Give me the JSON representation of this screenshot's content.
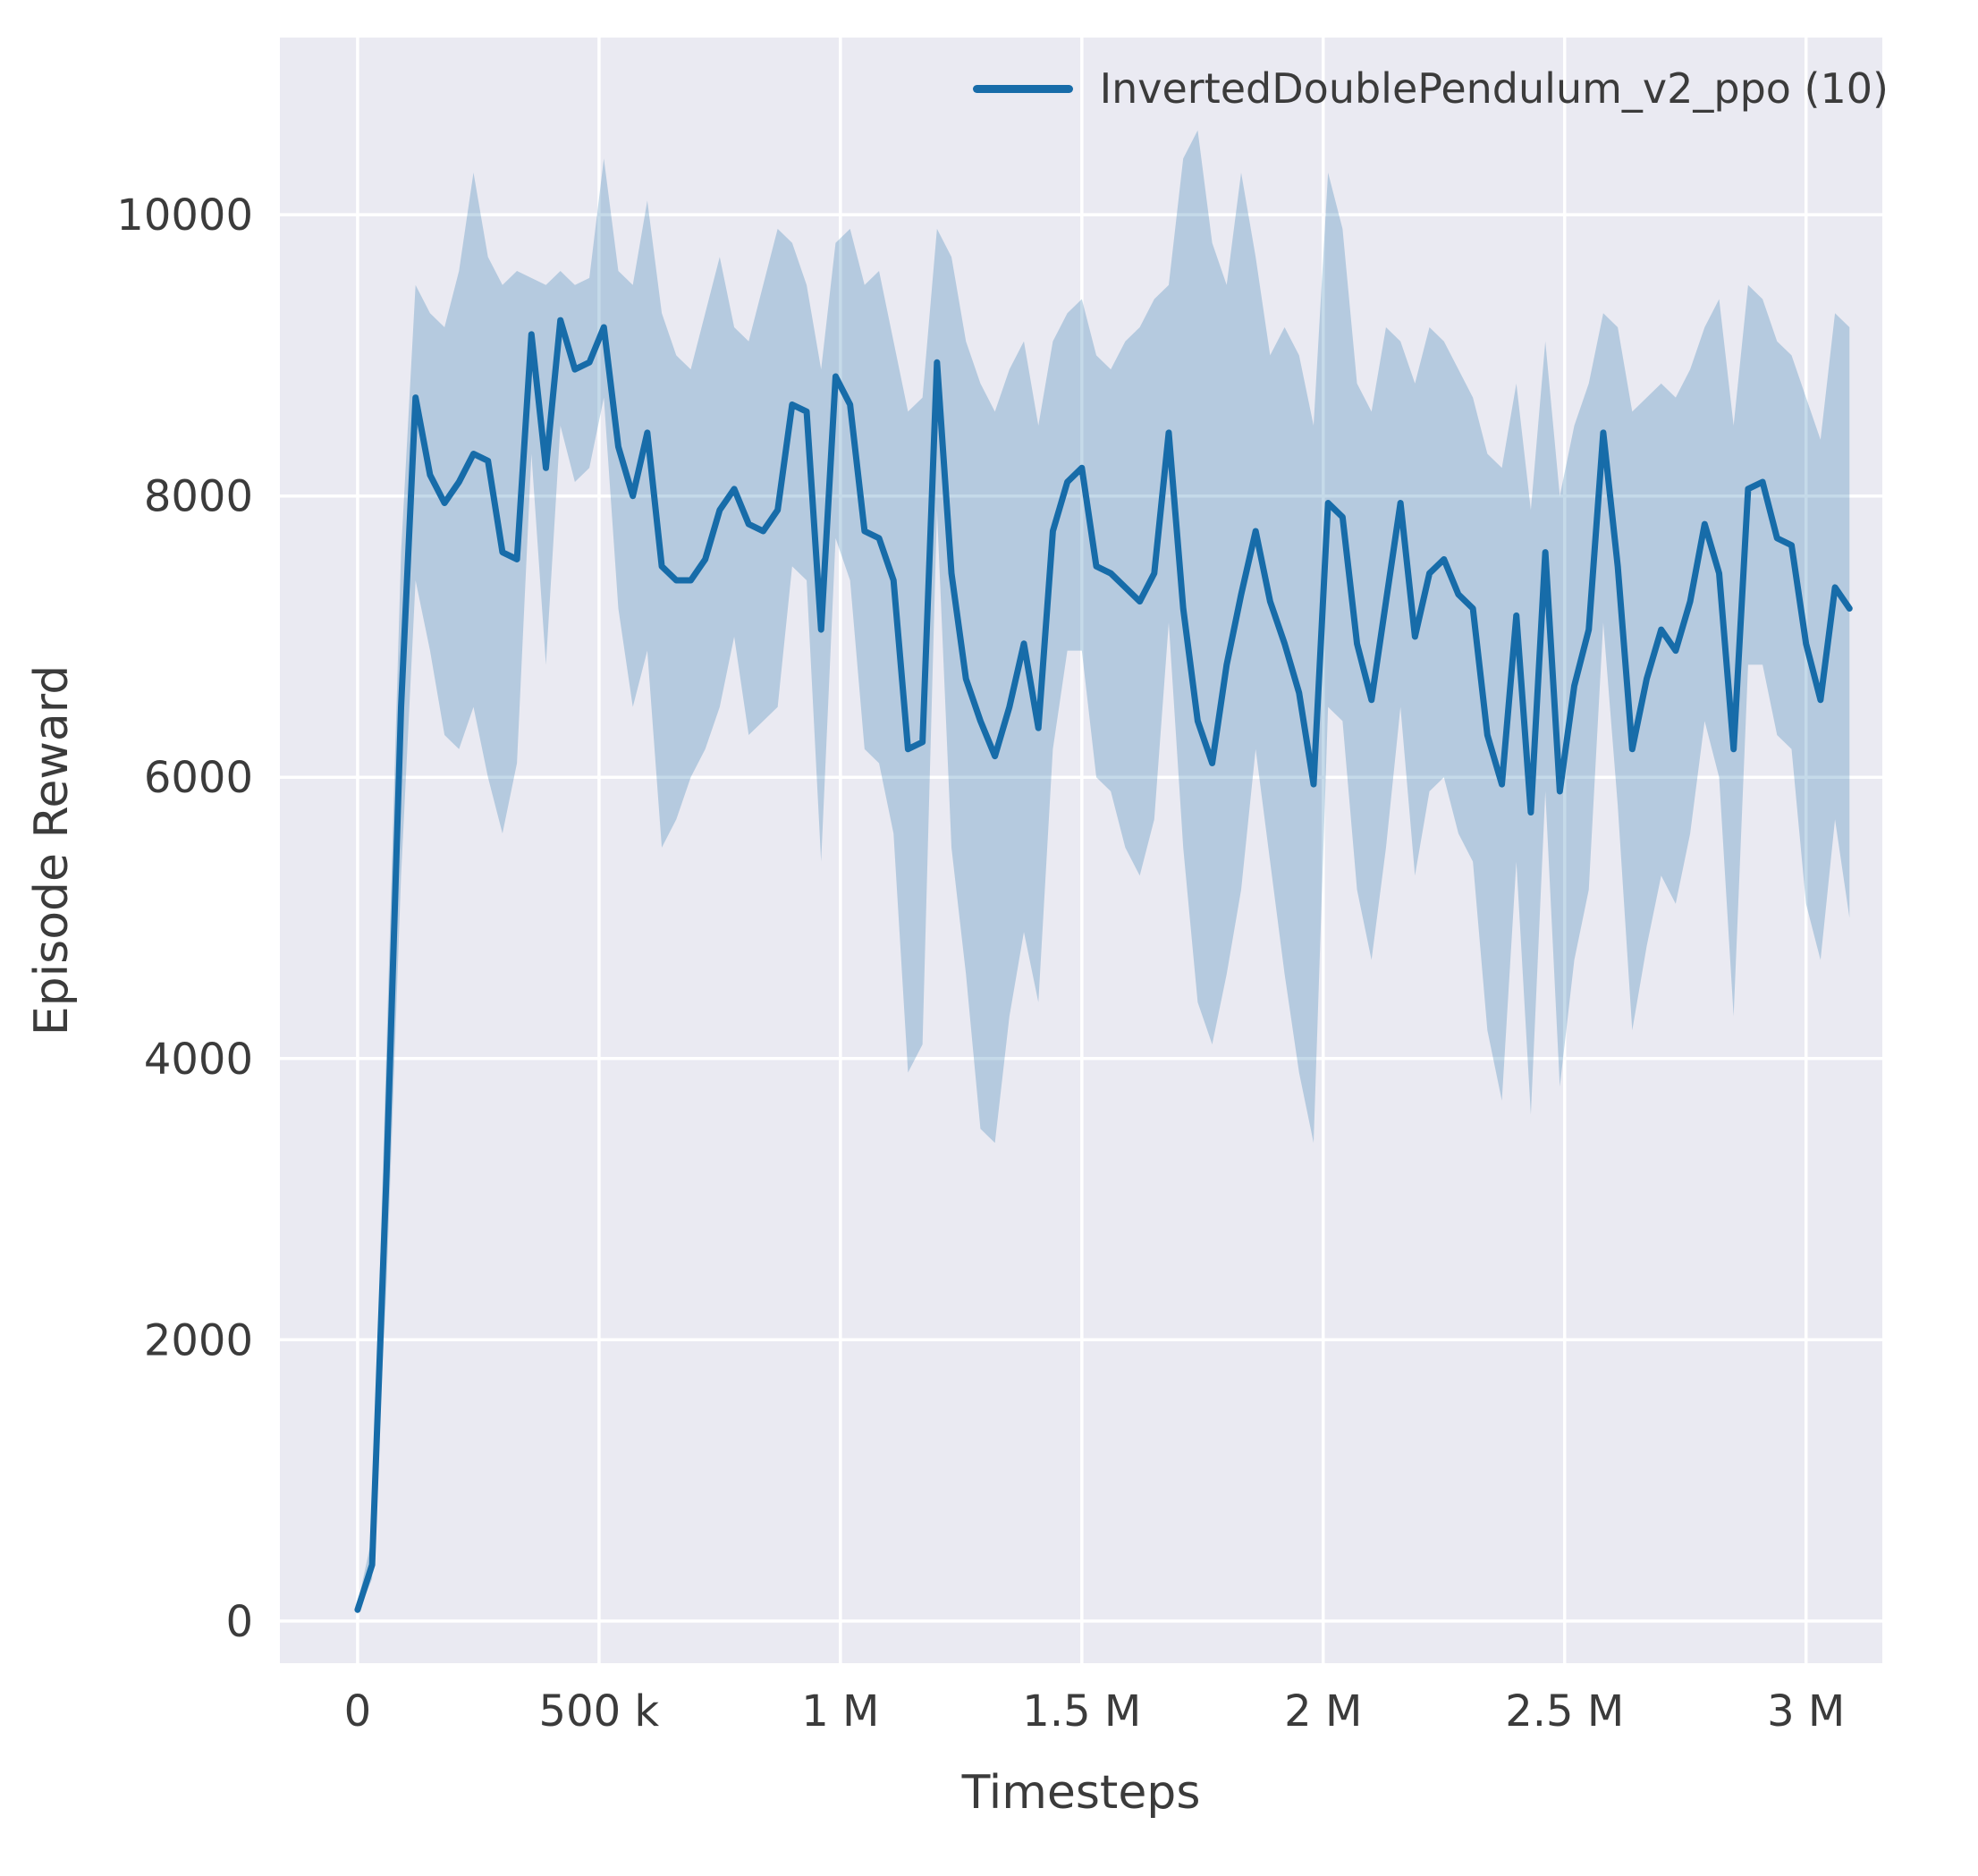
{
  "colors": {
    "figure_bg": "#ffffff",
    "plot_bg": "#eaeaf2",
    "grid": "#ffffff",
    "text": "#3b3b3b",
    "line": "#176ca9"
  },
  "chart_data": {
    "type": "line",
    "title": "",
    "xlabel": "Timesteps",
    "ylabel": "Episode Reward",
    "legend_position": "upper right",
    "grid": true,
    "xlim": [
      -161000,
      3158000
    ],
    "ylim": [
      -300,
      11260
    ],
    "x_ticks": [
      0,
      500000,
      1000000,
      1500000,
      2000000,
      2500000,
      3000000
    ],
    "x_tick_labels": [
      "0",
      "500 k",
      "1 M",
      "1.5 M",
      "2 M",
      "2.5 M",
      "3 M"
    ],
    "y_ticks": [
      0,
      2000,
      4000,
      6000,
      8000,
      10000
    ],
    "y_tick_labels": [
      "0",
      "2000",
      "4000",
      "6000",
      "8000",
      "10000"
    ],
    "x_start": 0,
    "x_step": 30000,
    "series": [
      {
        "name": "InvertedDoublePendulum_v2_ppo (10)",
        "color": "#176ca9",
        "band_opacity": 0.25,
        "mean": [
          80,
          400,
          3200,
          6500,
          8700,
          8150,
          7950,
          8100,
          8300,
          8250,
          7600,
          7550,
          9150,
          8200,
          9250,
          8900,
          8950,
          9200,
          8350,
          8000,
          8450,
          7500,
          7400,
          7400,
          7550,
          7900,
          8050,
          7800,
          7750,
          7900,
          8650,
          8600,
          7050,
          8850,
          8650,
          7750,
          7700,
          7400,
          6200,
          6250,
          8950,
          7450,
          6700,
          6400,
          6150,
          6500,
          6950,
          6350,
          7750,
          8100,
          8200,
          7500,
          7450,
          7350,
          7250,
          7450,
          8450,
          7200,
          6400,
          6100,
          6800,
          7300,
          7750,
          7250,
          6950,
          6600,
          5950,
          7950,
          7850,
          6950,
          6550,
          7250,
          7950,
          7000,
          7450,
          7550,
          7300,
          7200,
          6300,
          5950,
          7150,
          5750,
          7600,
          5900,
          6650,
          7050,
          8450,
          7500,
          6200,
          6700,
          7050,
          6900,
          7250,
          7800,
          7450,
          6200,
          8050,
          8100,
          7700,
          7650,
          6950,
          6550,
          7350,
          7200
        ],
        "lo": [
          50,
          300,
          2400,
          5300,
          7400,
          6900,
          6300,
          6200,
          6500,
          6000,
          5600,
          6100,
          8300,
          6800,
          8500,
          8100,
          8200,
          8700,
          7200,
          6500,
          6900,
          5500,
          5700,
          6000,
          6200,
          6500,
          7000,
          6300,
          6400,
          6500,
          7500,
          7400,
          5400,
          7700,
          7400,
          6200,
          6100,
          5600,
          3900,
          4100,
          7900,
          5500,
          4600,
          3500,
          3400,
          4300,
          4900,
          4400,
          6200,
          6900,
          6900,
          6000,
          5900,
          5500,
          5300,
          5700,
          7100,
          5500,
          4400,
          4100,
          4600,
          5200,
          6200,
          5400,
          4600,
          3900,
          3400,
          6500,
          6400,
          5200,
          4700,
          5500,
          6500,
          5300,
          5900,
          6000,
          5600,
          5400,
          4200,
          3700,
          5400,
          3600,
          5900,
          3800,
          4700,
          5200,
          7100,
          5800,
          4200,
          4800,
          5300,
          5100,
          5600,
          6400,
          6000,
          4300,
          6800,
          6800,
          6300,
          6200,
          5100,
          4700,
          5700,
          5000
        ],
        "hi": [
          120,
          600,
          4100,
          7600,
          9500,
          9300,
          9200,
          9600,
          10300,
          9700,
          9500,
          9600,
          9550,
          9500,
          9600,
          9500,
          9550,
          10400,
          9600,
          9500,
          10100,
          9300,
          9000,
          8900,
          9300,
          9700,
          9200,
          9100,
          9500,
          9900,
          9800,
          9500,
          8900,
          9800,
          9900,
          9500,
          9600,
          9100,
          8600,
          8700,
          9900,
          9700,
          9100,
          8800,
          8600,
          8900,
          9100,
          8500,
          9100,
          9300,
          9400,
          9000,
          8900,
          9100,
          9200,
          9400,
          9500,
          10400,
          10600,
          9800,
          9500,
          10300,
          9700,
          9000,
          9200,
          9000,
          8500,
          10300,
          9900,
          8800,
          8600,
          9200,
          9100,
          8800,
          9200,
          9100,
          8900,
          8700,
          8300,
          8200,
          8800,
          7900,
          9100,
          8000,
          8500,
          8800,
          9300,
          9200,
          8600,
          8700,
          8800,
          8700,
          8900,
          9200,
          9400,
          8500,
          9500,
          9400,
          9100,
          9000,
          8700,
          8400,
          9300,
          9200
        ]
      }
    ]
  }
}
